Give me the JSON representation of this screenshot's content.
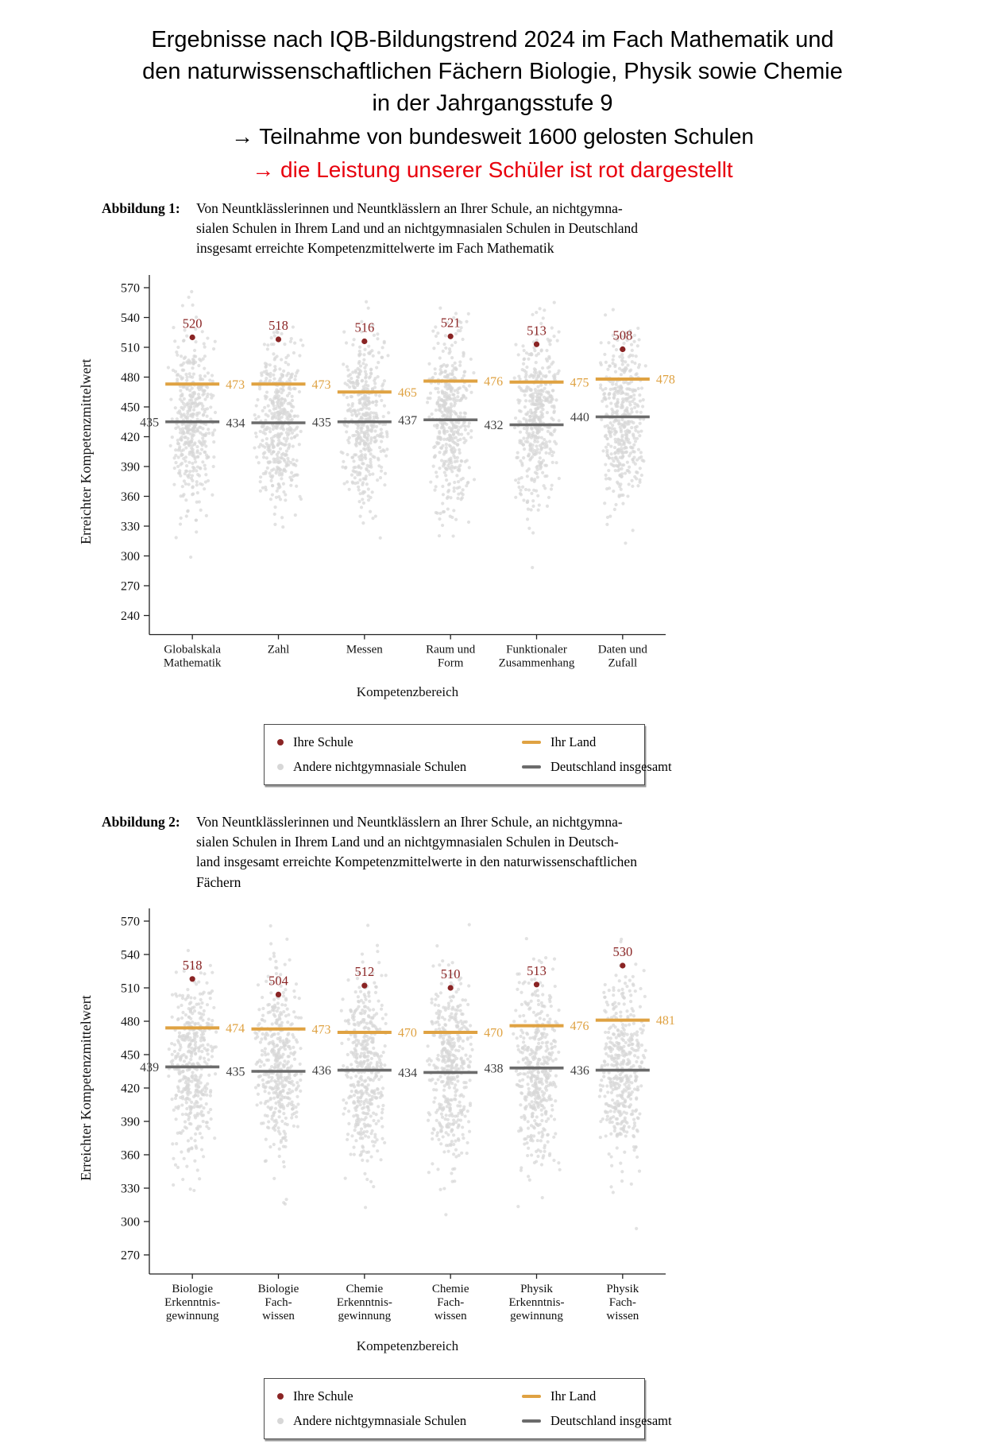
{
  "header": {
    "title_lines": [
      "Ergebnisse nach IQB-Bildungstrend 2024 im Fach Mathematik und",
      "den naturwissenschaftlichen Fächern Biologie, Physik sowie Chemie",
      "in der Jahrgangsstufe 9"
    ],
    "bullet1": "→ Teilnahme von bundesweit 1600 gelosten Schulen",
    "bullet2": "→ die Leistung unserer Schüler ist rot dargestellt"
  },
  "figure1": {
    "label": "Abbildung 1:",
    "caption_lines": [
      "Von Neuntklässlerinnen und Neuntklässlern an Ihrer Schule, an nichtgymna-",
      "sialen Schulen in Ihrem Land und an nichtgymnasialen Schulen in Deutschland",
      "insgesamt erreichte Kompetenzmittelwerte im Fach Mathematik"
    ]
  },
  "figure2": {
    "label": "Abbildung 2:",
    "caption_lines": [
      "Von Neuntklässlerinnen und Neuntklässlern an Ihrer Schule, an nichtgymna-",
      "sialen Schulen in Ihrem Land und an nichtgymnasialen Schulen in Deutsch-",
      "land insgesamt erreichte Kompetenzmittelwerte in den naturwissenschaftlichen",
      "Fächern"
    ]
  },
  "legend": {
    "school": "Ihre Schule",
    "others": "Andere nichtgymnasiale Schulen",
    "land": "Ihr Land",
    "germany": "Deutschland insgesamt"
  },
  "colors": {
    "school": "#8a2424",
    "others": "#d7d7d7",
    "land": "#dfa242",
    "germany": "#6b6b6b",
    "germany_label": "#3f3f3f",
    "red_text": "#e8000d"
  },
  "chart_data": [
    {
      "type": "scatter",
      "xlabel": "Kompetenzbereich",
      "ylabel": "Erreichter Kompetenzmittelwert",
      "ylim": [
        240,
        570
      ],
      "ytick_step": 30,
      "grid": false,
      "legend_position": "below",
      "categories": [
        "Globalskala\nMathematik",
        "Zahl",
        "Messen",
        "Raum und\nForm",
        "Funktionaler\nZusammenhang",
        "Daten und\nZufall"
      ],
      "series": [
        {
          "name": "Ihre Schule",
          "role": "school",
          "values": [
            520,
            518,
            516,
            521,
            513,
            508
          ]
        },
        {
          "name": "Ihr Land",
          "role": "land",
          "values": [
            473,
            473,
            465,
            476,
            475,
            478
          ]
        },
        {
          "name": "Deutschland insgesamt",
          "role": "germany",
          "values": [
            435,
            434,
            435,
            437,
            432,
            440
          ]
        },
        {
          "name": "Andere nichtgymnasiale Schulen",
          "role": "others",
          "distribution": {
            "mean": 436,
            "sd": 44,
            "approx_range": [
              250,
              565
            ]
          }
        }
      ]
    },
    {
      "type": "scatter",
      "xlabel": "Kompetenzbereich",
      "ylabel": "Erreichter Kompetenzmittelwert",
      "ylim": [
        270,
        570
      ],
      "ytick_step": 30,
      "grid": false,
      "legend_position": "below",
      "categories": [
        "Biologie\nErkenntnis-\ngewinnung",
        "Biologie\nFach-\nwissen",
        "Chemie\nErkenntnis-\ngewinnung",
        "Chemie\nFach-\nwissen",
        "Physik\nErkenntnis-\ngewinnung",
        "Physik\nFach-\nwissen"
      ],
      "series": [
        {
          "name": "Ihre Schule",
          "role": "school",
          "values": [
            518,
            504,
            512,
            510,
            513,
            530
          ]
        },
        {
          "name": "Ihr Land",
          "role": "land",
          "values": [
            474,
            473,
            470,
            470,
            476,
            481
          ]
        },
        {
          "name": "Deutschland insgesamt",
          "role": "germany",
          "values": [
            439,
            435,
            436,
            434,
            438,
            436
          ]
        },
        {
          "name": "Andere nichtgymnasiale Schulen",
          "role": "others",
          "distribution": {
            "mean": 437,
            "sd": 42,
            "approx_range": [
              280,
              570
            ]
          }
        }
      ]
    }
  ]
}
